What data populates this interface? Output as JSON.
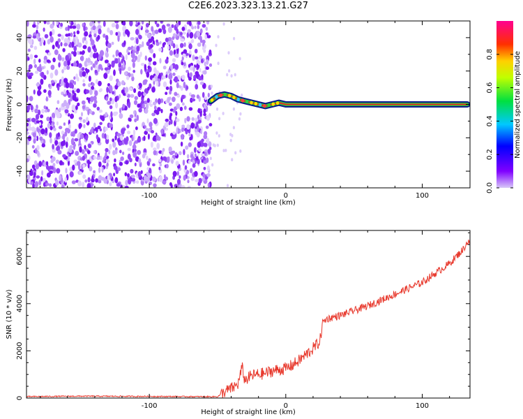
{
  "title": "C2E6.2023.323.13.21.G27",
  "colors": {
    "snr_line": "#e83a2e",
    "spectrogram_noise": "#7a18f0",
    "axis": "#000000"
  },
  "chart_data": [
    {
      "type": "heatmap",
      "xlabel": "Height of straight line (km)",
      "ylabel": "Frequency (Hz)",
      "xlim": [
        -190,
        135
      ],
      "ylim": [
        -50,
        50
      ],
      "x_ticks": [
        -100,
        0,
        100
      ],
      "y_ticks": [
        -40,
        -20,
        0,
        20,
        40
      ],
      "noise_region_x": [
        -190,
        -55
      ],
      "signal_track": {
        "x": [
          -55,
          -50,
          -45,
          -40,
          -35,
          -30,
          -25,
          -20,
          -15,
          -10,
          -5,
          0,
          10,
          20,
          40,
          60,
          80,
          100,
          120,
          133
        ],
        "y": [
          2,
          5,
          6,
          5,
          3,
          2,
          1,
          0,
          -1,
          0,
          1,
          0,
          0,
          0,
          0,
          0,
          0,
          0,
          0,
          0
        ]
      },
      "colorbar": {
        "label": "Normalized spectral amplitude",
        "range": [
          0,
          1
        ],
        "ticks": [
          0.0,
          0.2,
          0.4,
          0.6,
          0.8
        ]
      },
      "grid": false
    },
    {
      "type": "line",
      "xlabel": "Height of straight line (km)",
      "ylabel": "SNR (10 * v/v)",
      "xlim": [
        -190,
        135
      ],
      "ylim": [
        0,
        7100
      ],
      "x_ticks": [
        -100,
        0,
        100
      ],
      "y_ticks": [
        0,
        2000,
        4000,
        6000
      ],
      "grid": false,
      "series": [
        {
          "x": [
            -190,
            -150,
            -100,
            -60,
            -50,
            -45,
            -40,
            -37,
            -35,
            -32,
            -30,
            -25,
            -20,
            -15,
            -10,
            -5,
            0,
            5,
            10,
            15,
            20,
            25,
            27,
            30,
            40,
            50,
            60,
            70,
            80,
            90,
            100,
            110,
            120,
            130,
            133
          ],
          "values": [
            60,
            80,
            70,
            60,
            60,
            250,
            400,
            500,
            600,
            1300,
            750,
            950,
            1000,
            1050,
            1150,
            1200,
            1250,
            1400,
            1600,
            1850,
            2100,
            2400,
            3200,
            3350,
            3500,
            3700,
            3900,
            4150,
            4400,
            4650,
            4900,
            5300,
            5700,
            6300,
            6600
          ]
        }
      ]
    }
  ]
}
